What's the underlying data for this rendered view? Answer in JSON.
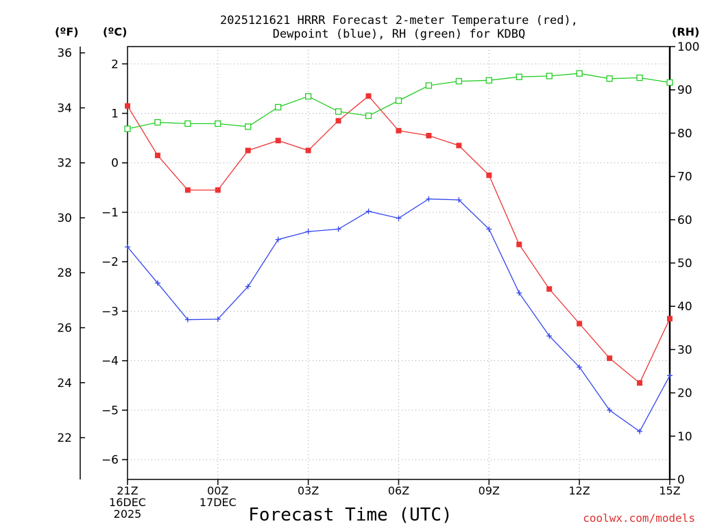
{
  "chart_data": {
    "type": "line",
    "title_lines": [
      "2025121621 HRRR Forecast 2-meter Temperature (red),",
      "Dewpoint (blue), RH (green) for KDBQ"
    ],
    "xlabel": "Forecast Time (UTC)",
    "watermark": "coolwx.com/models",
    "units": {
      "left_f": "(ºF)",
      "left_c": "(ºC)",
      "right_rh": "(RH)"
    },
    "x_hours": [
      0,
      1,
      2,
      3,
      4,
      5,
      6,
      7,
      8,
      9,
      10,
      11,
      12,
      13,
      14,
      15,
      16,
      17,
      18
    ],
    "x_ticks": [
      {
        "hour": 0,
        "lines": [
          "21Z",
          "16DEC",
          "2025"
        ]
      },
      {
        "hour": 3,
        "lines": [
          "00Z",
          "17DEC"
        ]
      },
      {
        "hour": 6,
        "lines": [
          "03Z"
        ]
      },
      {
        "hour": 9,
        "lines": [
          "06Z"
        ]
      },
      {
        "hour": 12,
        "lines": [
          "09Z"
        ]
      },
      {
        "hour": 15,
        "lines": [
          "12Z"
        ]
      },
      {
        "hour": 18,
        "lines": [
          "15Z"
        ]
      }
    ],
    "xlim": [
      0,
      18
    ],
    "celsius_axis": {
      "ylim": [
        -6.4,
        2.35
      ],
      "ticks": [
        "2",
        "1",
        "0",
        "−1",
        "−2",
        "−3",
        "−4",
        "−5",
        "−6"
      ],
      "tick_values": [
        2,
        1,
        0,
        -1,
        -2,
        -3,
        -4,
        -5,
        -6
      ]
    },
    "fahrenheit_ticks": {
      "labels": [
        "36",
        "34",
        "32",
        "30",
        "28",
        "26",
        "24",
        "22"
      ],
      "values": [
        36,
        34,
        32,
        30,
        28,
        26,
        24,
        22
      ]
    },
    "rh_axis": {
      "ylim": [
        0,
        100
      ],
      "ticks": [
        "100",
        "90",
        "80",
        "70",
        "60",
        "50",
        "40",
        "30",
        "20",
        "10",
        "0"
      ],
      "tick_values": [
        100,
        90,
        80,
        70,
        60,
        50,
        40,
        30,
        20,
        10,
        0
      ]
    },
    "series": [
      {
        "name": "Temperature (°C)",
        "color": "#ee3333",
        "marker": "filled-square",
        "axis": "celsius",
        "values": [
          1.15,
          0.15,
          -0.55,
          -0.55,
          0.25,
          0.45,
          0.25,
          0.85,
          1.35,
          0.65,
          0.55,
          0.35,
          -0.25,
          -1.65,
          -2.55,
          -3.25,
          -3.95,
          -4.45,
          -3.15
        ]
      },
      {
        "name": "Dewpoint (°C)",
        "color": "#3344ee",
        "marker": "plus",
        "axis": "celsius",
        "values": [
          -1.7,
          -2.43,
          -3.17,
          -3.16,
          -2.5,
          -1.55,
          -1.39,
          -1.34,
          -0.98,
          -1.12,
          -0.73,
          -0.75,
          -1.34,
          -2.63,
          -3.5,
          -4.13,
          -5.0,
          -5.43,
          -4.3
        ]
      },
      {
        "name": "RH (%)",
        "color": "#22cc22",
        "marker": "hollow-square",
        "axis": "rh",
        "values": [
          81,
          82.5,
          82.2,
          82.2,
          81.5,
          86,
          88.5,
          85,
          84,
          87.5,
          91,
          92,
          92.2,
          93,
          93.2,
          93.8,
          92.6,
          92.8,
          91.7
        ]
      }
    ]
  }
}
